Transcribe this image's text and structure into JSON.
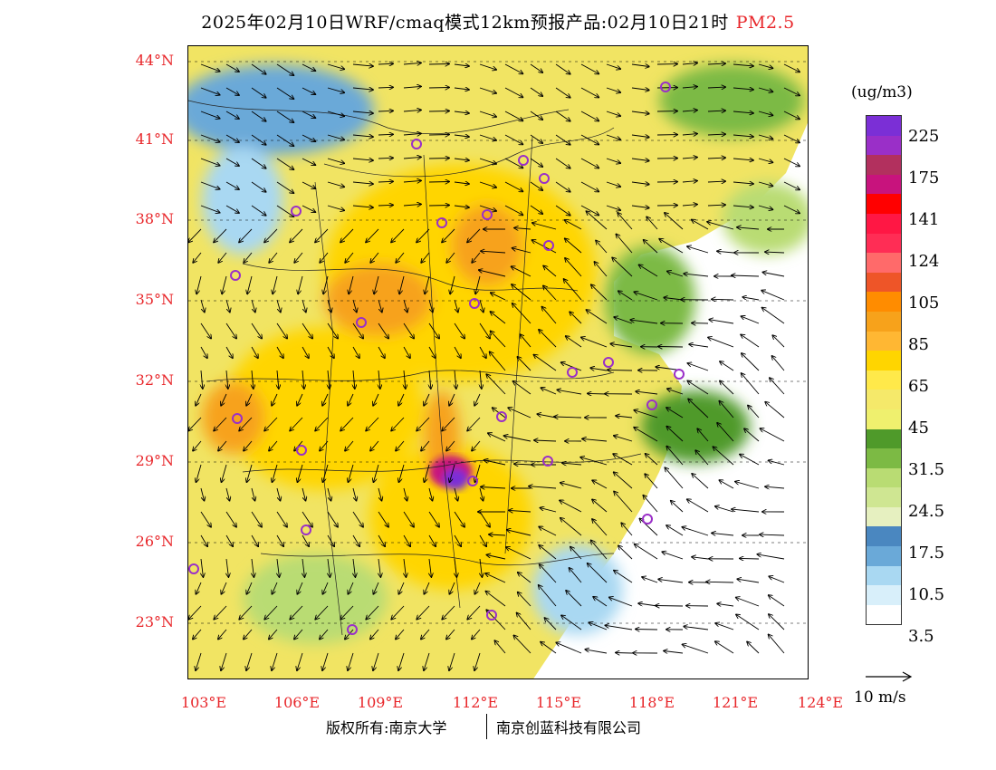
{
  "title": {
    "main": "2025年02月10日WRF/cmaq模式12km预报产品:02月10日21时",
    "pollutant": "PM2.5"
  },
  "axes": {
    "lat_labels": [
      "44°N",
      "41°N",
      "38°N",
      "35°N",
      "32°N",
      "29°N",
      "26°N",
      "23°N"
    ],
    "lon_labels": [
      "103°E",
      "106°E",
      "109°E",
      "112°E",
      "115°E",
      "118°E",
      "121°E",
      "124°E"
    ]
  },
  "colorbar": {
    "unit": "(ug/m3)",
    "labels": [
      "225",
      "175",
      "141",
      "124",
      "105",
      "85",
      "65",
      "45",
      "31.5",
      "24.5",
      "17.5",
      "10.5",
      "3.5"
    ],
    "colors": [
      "#7b2fd6",
      "#9a2fc8",
      "#b2305e",
      "#c8137d",
      "#ff0000",
      "#ff1744",
      "#ff2d55",
      "#ff6a6a",
      "#ee5528",
      "#ff8c00",
      "#f7a21b",
      "#ffb733",
      "#ffd500",
      "#ffe94a",
      "#f5e96a",
      "#eff06e",
      "#4f9a2a",
      "#7cba44",
      "#b9dc73",
      "#cfe692",
      "#e6f0c0",
      "#4a87c0",
      "#6aa9d8",
      "#a9d8f2",
      "#d8effa",
      "#ffffff"
    ]
  },
  "wind_reference": {
    "label": "10 m/s"
  },
  "credits": {
    "copyright": "版权所有:南京大学",
    "company": "南京创蓝科技有限公司"
  },
  "map": {
    "colors": {
      "ocean": "#ffffff",
      "land_base": "#f1e463",
      "pollution_mid": "#ffd500",
      "pollution_high": "#f7a21b",
      "pollution_peak": "#7b2fd6",
      "clean_green": "#7cba44",
      "clean_blue": "#6aa9d8",
      "city_marker": "#9a2fc8"
    }
  }
}
